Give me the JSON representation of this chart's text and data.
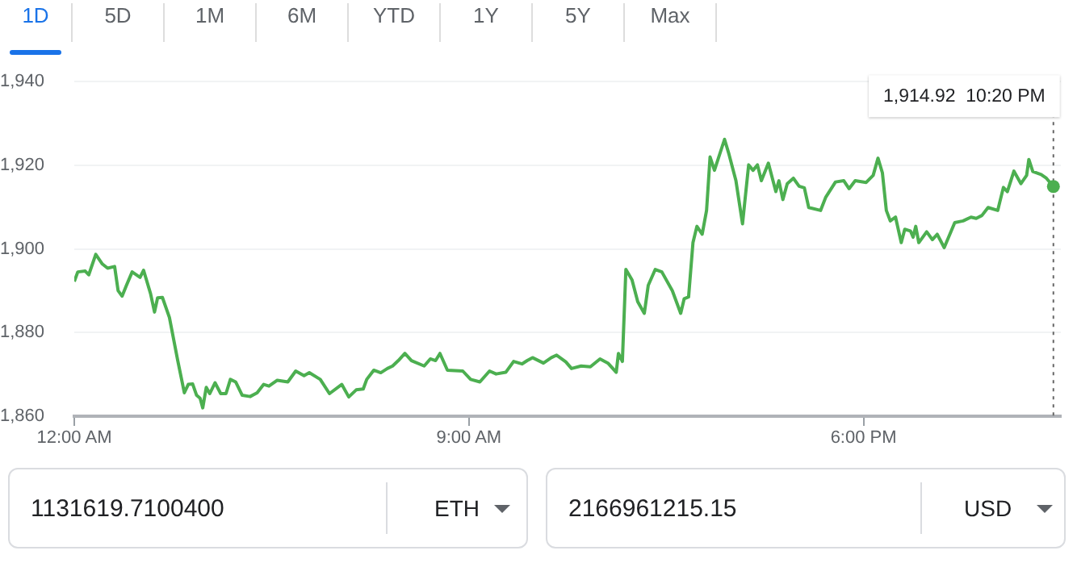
{
  "chart_data": {
    "type": "line",
    "x": [
      0,
      0.08,
      0.25,
      0.33,
      0.49,
      0.64,
      0.76,
      0.92,
      1.0,
      1.09,
      1.19,
      1.32,
      1.5,
      1.58,
      1.74,
      1.83,
      1.9,
      2.01,
      2.17,
      2.36,
      2.51,
      2.6,
      2.7,
      2.79,
      2.87,
      2.93,
      3.01,
      3.09,
      3.21,
      3.34,
      3.46,
      3.56,
      3.68,
      3.83,
      4.01,
      4.17,
      4.32,
      4.44,
      4.63,
      4.87,
      5.05,
      5.24,
      5.36,
      5.61,
      5.82,
      6.1,
      6.26,
      6.43,
      6.59,
      6.67,
      6.83,
      6.99,
      7.14,
      7.26,
      7.39,
      7.54,
      7.69,
      7.98,
      8.12,
      8.24,
      8.34,
      8.51,
      8.86,
      9.04,
      9.25,
      9.47,
      9.62,
      9.84,
      10.02,
      10.21,
      10.33,
      10.45,
      10.7,
      10.88,
      11.0,
      11.21,
      11.34,
      11.56,
      11.77,
      11.99,
      12.17,
      12.36,
      12.41,
      12.5,
      12.58,
      12.72,
      12.85,
      13.0,
      13.09,
      13.25,
      13.4,
      13.64,
      13.83,
      13.91,
      14.01,
      14.11,
      14.2,
      14.32,
      14.42,
      14.5,
      14.6,
      14.83,
      14.93,
      15.09,
      15.24,
      15.38,
      15.48,
      15.58,
      15.67,
      15.83,
      16.0,
      16.07,
      16.16,
      16.26,
      16.4,
      16.53,
      16.65,
      16.75,
      17.02,
      17.14,
      17.36,
      17.55,
      17.67,
      17.81,
      18.06,
      18.22,
      18.33,
      18.43,
      18.52,
      18.61,
      18.73,
      18.86,
      18.94,
      19.07,
      19.13,
      19.19,
      19.26,
      19.44,
      19.57,
      19.68,
      19.84,
      20.08,
      20.27,
      20.45,
      20.57,
      20.7,
      20.84,
      21.06,
      21.19,
      21.28,
      21.43,
      21.59,
      21.72,
      21.77,
      21.86,
      22.05,
      22.17,
      22.33
    ],
    "series": [
      {
        "color": "#4caf50",
        "values": [
          1892.2,
          1894.5,
          1894.7,
          1893.8,
          1898.7,
          1896.4,
          1895.4,
          1895.8,
          1890,
          1888.7,
          1891.3,
          1894.5,
          1893.2,
          1894.9,
          1889.3,
          1884.9,
          1888.3,
          1888.4,
          1883.6,
          1873.3,
          1865.6,
          1867.6,
          1867.7,
          1865,
          1864.3,
          1862,
          1866.9,
          1865.4,
          1868,
          1865.4,
          1865.4,
          1868.8,
          1868.2,
          1865,
          1864.7,
          1865.6,
          1867.6,
          1867.2,
          1868.6,
          1868.2,
          1870.8,
          1869.7,
          1870.4,
          1868.8,
          1865.4,
          1867.6,
          1864.6,
          1866.3,
          1866.5,
          1868.8,
          1871,
          1870.4,
          1871.4,
          1872,
          1873.3,
          1875,
          1873.3,
          1872,
          1873.7,
          1873.3,
          1875,
          1871,
          1870.8,
          1868.8,
          1868.2,
          1870.8,
          1870.1,
          1870.5,
          1873.1,
          1872.5,
          1873.3,
          1874,
          1872.7,
          1874,
          1874.6,
          1873,
          1871.4,
          1872,
          1871.8,
          1873.7,
          1872.7,
          1870.5,
          1875,
          1873.1,
          1895.1,
          1892.6,
          1887.4,
          1884.6,
          1891.3,
          1895.1,
          1894.5,
          1890,
          1884.6,
          1888.1,
          1888.5,
          1901.5,
          1905.4,
          1903.5,
          1909.2,
          1922,
          1918.8,
          1926.2,
          1922.7,
          1916.3,
          1906,
          1920.1,
          1918.8,
          1920.1,
          1916.3,
          1920.5,
          1913.7,
          1916.3,
          1911.8,
          1915.6,
          1916.9,
          1915,
          1914.6,
          1909.9,
          1909.2,
          1912.4,
          1916,
          1916.3,
          1914.4,
          1916.3,
          1915.9,
          1917.6,
          1921.7,
          1918.2,
          1909.2,
          1906.7,
          1907.6,
          1901.5,
          1904.7,
          1904.3,
          1902.8,
          1905.4,
          1901.5,
          1904.1,
          1902.2,
          1903.5,
          1900.3,
          1906.3,
          1906.7,
          1907.6,
          1907.3,
          1908,
          1909.9,
          1909.2,
          1914.7,
          1913.7,
          1918.6,
          1915.6,
          1917.6,
          1921.4,
          1918.5,
          1917.8,
          1916.9,
          1914.92
        ]
      }
    ],
    "xlim": [
      0,
      22.5
    ],
    "xticks": [
      {
        "value": 0,
        "label": "12:00 AM"
      },
      {
        "value": 9,
        "label": "9:00 AM"
      },
      {
        "value": 18,
        "label": "6:00 PM"
      }
    ],
    "ylim": [
      1860,
      1940
    ],
    "yticks": [
      {
        "value": 1860,
        "label": "1,860"
      },
      {
        "value": 1880,
        "label": "1,880"
      },
      {
        "value": 1900,
        "label": "1,900"
      },
      {
        "value": 1920,
        "label": "1,920"
      },
      {
        "value": 1940,
        "label": "1,940"
      }
    ],
    "grid": "y",
    "marker": "none",
    "line_style": "solid",
    "legend": false,
    "ref_lines": [
      {
        "axis": "x",
        "value": 22.33,
        "line_style": "dotted",
        "color": "#666666"
      }
    ],
    "annotations": [
      "1,914.92  10:20 PM",
      "1D",
      "5D",
      "1M",
      "6M",
      "YTD",
      "1Y",
      "5Y",
      "Max",
      "1131619.7100400",
      "ETH",
      "2166961215.15",
      "USD"
    ]
  }
}
